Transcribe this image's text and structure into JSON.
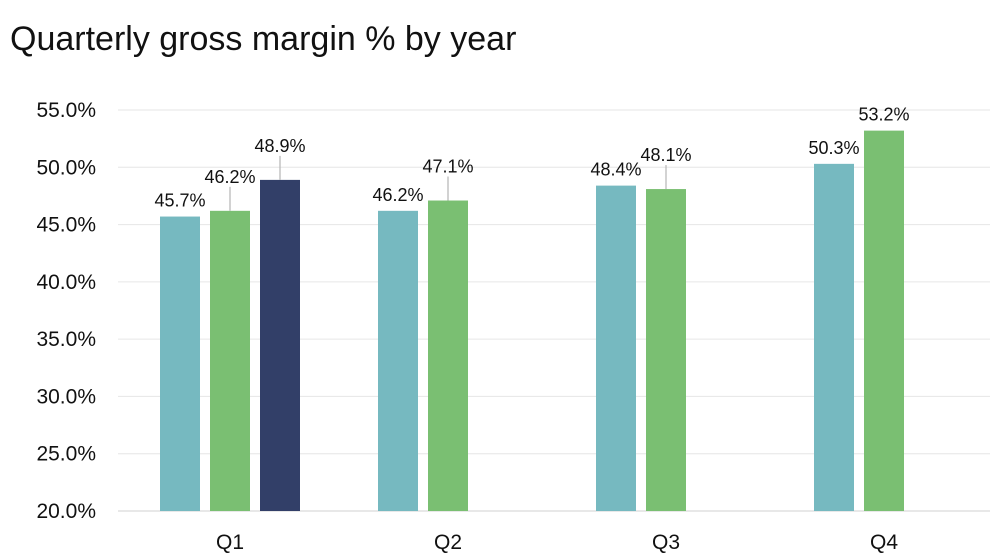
{
  "chart_data": {
    "type": "bar",
    "title": "Quarterly gross margin % by year",
    "categories": [
      "Q1",
      "Q2",
      "Q3",
      "Q4"
    ],
    "series": [
      {
        "color": "#76b9c0",
        "values": [
          45.7,
          46.2,
          48.4,
          50.3
        ],
        "labels": [
          "45.7%",
          "46.2%",
          "48.4%",
          "50.3%"
        ]
      },
      {
        "color": "#7abf72",
        "values": [
          46.2,
          47.1,
          48.1,
          53.2
        ],
        "labels": [
          "46.2%",
          "47.1%",
          "48.1%",
          "53.2%"
        ]
      },
      {
        "color": "#323f68",
        "values": [
          48.9,
          null,
          null,
          null
        ],
        "labels": [
          "48.9%",
          null,
          null,
          null
        ]
      }
    ],
    "yticks": [
      "20.0%",
      "25.0%",
      "30.0%",
      "35.0%",
      "40.0%",
      "45.0%",
      "50.0%",
      "55.0%"
    ],
    "ylim": [
      20,
      55
    ],
    "grid": true,
    "legend": "none"
  }
}
